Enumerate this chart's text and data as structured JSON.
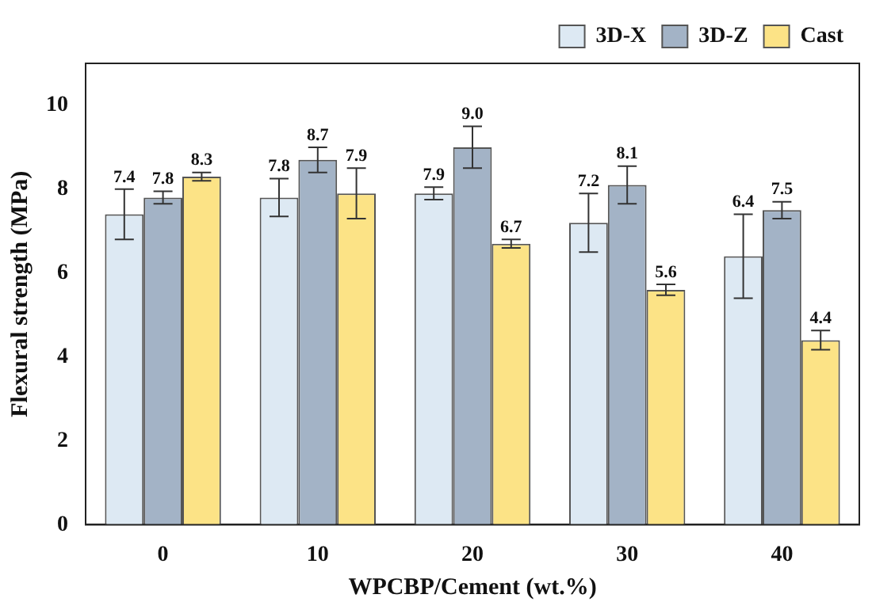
{
  "chart_data": {
    "type": "bar",
    "xlabel": "WPCBP/Cement (wt.%)",
    "ylabel": "Flexural strength (MPa)",
    "categories": [
      "0",
      "10",
      "20",
      "30",
      "40"
    ],
    "series": [
      {
        "name": "3D-X",
        "color": "#dde9f3",
        "values": [
          7.4,
          7.8,
          7.9,
          7.2,
          6.4
        ],
        "errors": [
          0.6,
          0.45,
          0.15,
          0.7,
          1.0
        ],
        "value_labels": [
          "7.4",
          "7.8",
          "7.9",
          "7.2",
          "6.4"
        ]
      },
      {
        "name": "3D-Z",
        "color": "#a3b3c6",
        "values": [
          7.8,
          8.7,
          9.0,
          8.1,
          7.5
        ],
        "errors": [
          0.15,
          0.3,
          0.5,
          0.45,
          0.2
        ],
        "value_labels": [
          "7.8",
          "8.7",
          "9.0",
          "8.1",
          "7.5"
        ]
      },
      {
        "name": "Cast",
        "color": "#fce386",
        "values": [
          8.3,
          7.9,
          6.7,
          5.6,
          4.4
        ],
        "errors": [
          0.1,
          0.6,
          0.1,
          0.13,
          0.23
        ],
        "value_labels": [
          "8.3",
          "7.9",
          "6.7",
          "5.6",
          "4.4"
        ]
      }
    ],
    "ylim": [
      0,
      11
    ],
    "yticks": [
      0,
      2,
      4,
      6,
      8,
      10
    ],
    "grid": false,
    "legend": "top right"
  }
}
